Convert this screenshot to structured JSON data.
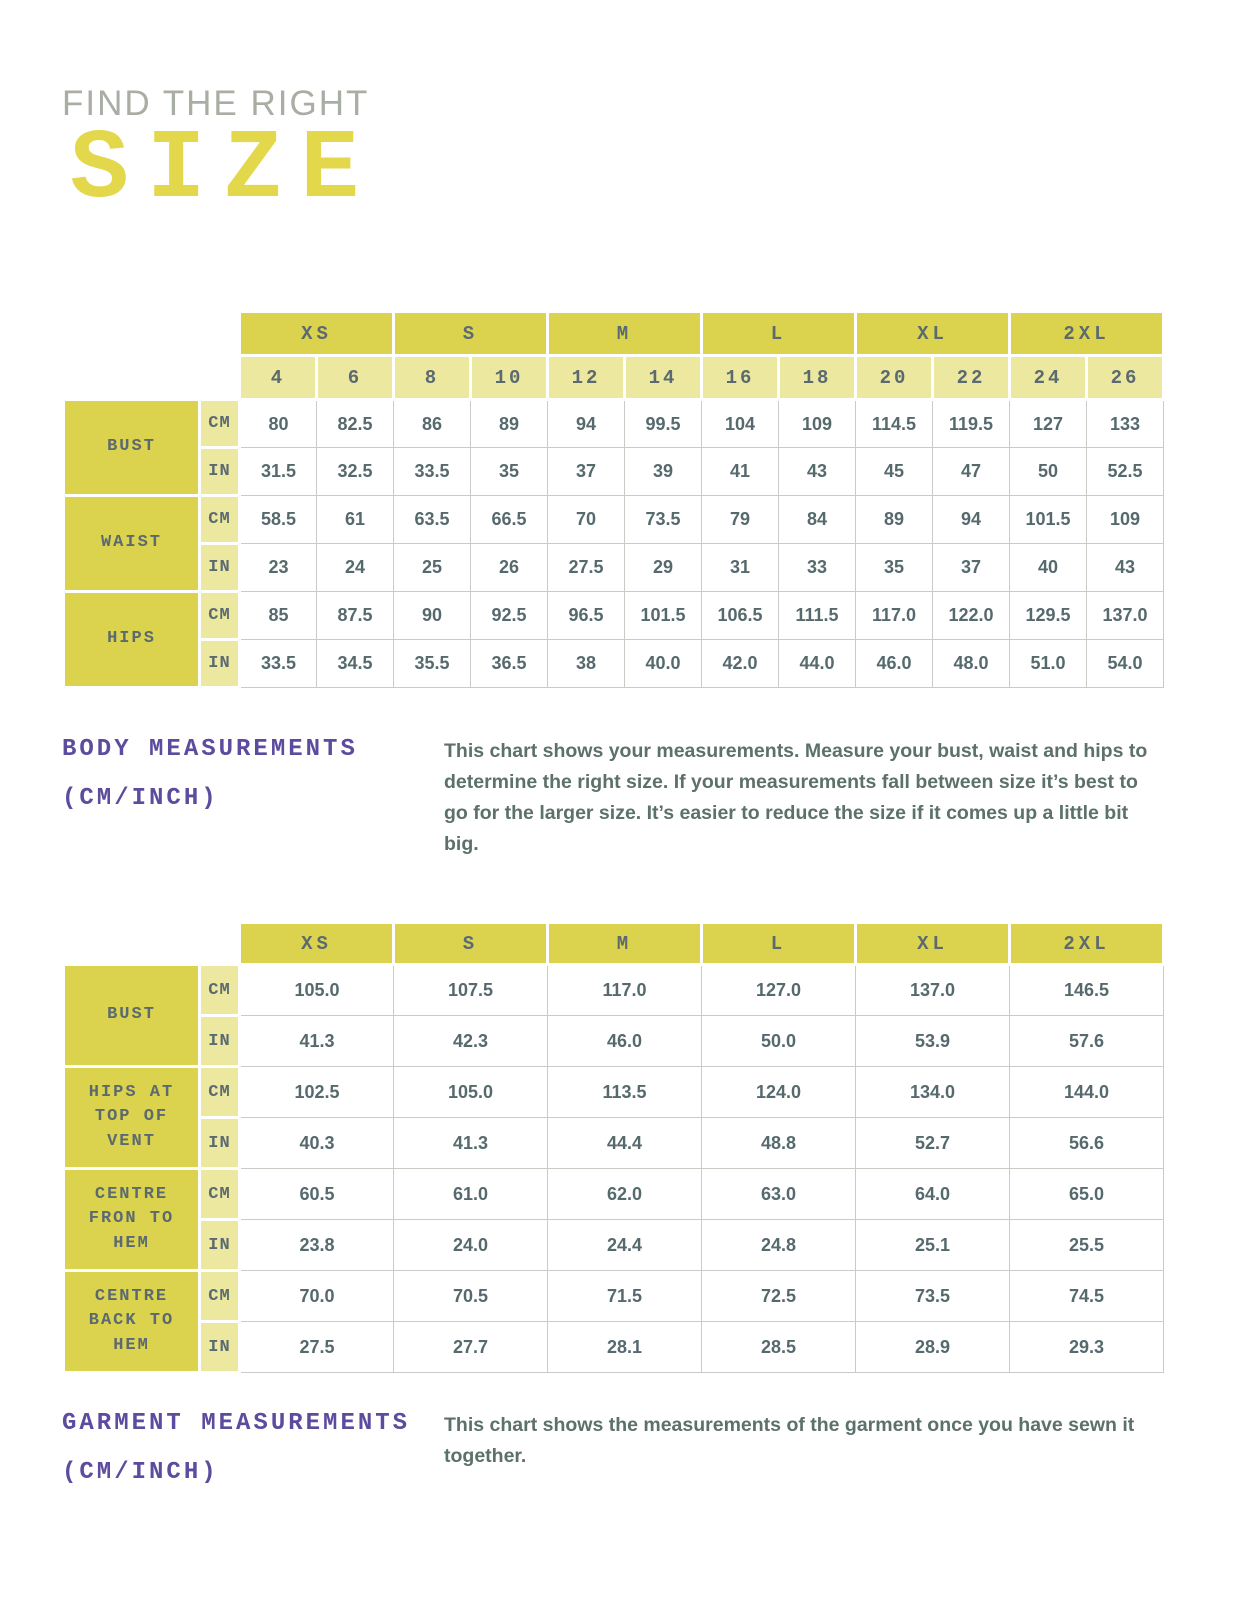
{
  "title": {
    "eyebrow": "FIND THE RIGHT",
    "word": "SIZE"
  },
  "body_section": {
    "heading_line1": "BODY MEASUREMENTS",
    "heading_line2": "(CM/INCH)",
    "description": "This chart shows your measurements. Measure your bust, waist and hips to determine the right size. If your measurements fall between size it’s best to go for the larger size. It’s easier to reduce the size if it comes up a little bit big."
  },
  "garment_section": {
    "heading_line1": "GARMENT MEASUREMENTS",
    "heading_line2": "(CM/INCH)",
    "description": "This chart shows the measurements of the garment once you have sewn it together."
  },
  "body_table": {
    "size_groups": [
      "XS",
      "S",
      "M",
      "L",
      "XL",
      "2XL"
    ],
    "numeric_sizes": [
      "4",
      "6",
      "8",
      "10",
      "12",
      "14",
      "16",
      "18",
      "20",
      "22",
      "24",
      "26"
    ],
    "unit_labels": [
      "CM",
      "IN"
    ],
    "rows": [
      {
        "label": "BUST",
        "cm": [
          "80",
          "82.5",
          "86",
          "89",
          "94",
          "99.5",
          "104",
          "109",
          "114.5",
          "119.5",
          "127",
          "133"
        ],
        "in": [
          "31.5",
          "32.5",
          "33.5",
          "35",
          "37",
          "39",
          "41",
          "43",
          "45",
          "47",
          "50",
          "52.5"
        ]
      },
      {
        "label": "WAIST",
        "cm": [
          "58.5",
          "61",
          "63.5",
          "66.5",
          "70",
          "73.5",
          "79",
          "84",
          "89",
          "94",
          "101.5",
          "109"
        ],
        "in": [
          "23",
          "24",
          "25",
          "26",
          "27.5",
          "29",
          "31",
          "33",
          "35",
          "37",
          "40",
          "43"
        ]
      },
      {
        "label": "HIPS",
        "cm": [
          "85",
          "87.5",
          "90",
          "92.5",
          "96.5",
          "101.5",
          "106.5",
          "111.5",
          "117.0",
          "122.0",
          "129.5",
          "137.0"
        ],
        "in": [
          "33.5",
          "34.5",
          "35.5",
          "36.5",
          "38",
          "40.0",
          "42.0",
          "44.0",
          "46.0",
          "48.0",
          "51.0",
          "54.0"
        ]
      }
    ]
  },
  "garment_table": {
    "size_groups": [
      "XS",
      "S",
      "M",
      "L",
      "XL",
      "2XL"
    ],
    "unit_labels": [
      "CM",
      "IN"
    ],
    "rows": [
      {
        "label": "BUST",
        "cm": [
          "105.0",
          "107.5",
          "117.0",
          "127.0",
          "137.0",
          "146.5"
        ],
        "in": [
          "41.3",
          "42.3",
          "46.0",
          "50.0",
          "53.9",
          "57.6"
        ]
      },
      {
        "label": "HIPS AT TOP OF VENT",
        "cm": [
          "102.5",
          "105.0",
          "113.5",
          "124.0",
          "134.0",
          "144.0"
        ],
        "in": [
          "40.3",
          "41.3",
          "44.4",
          "48.8",
          "52.7",
          "56.6"
        ]
      },
      {
        "label": "CENTRE FRON TO HEM",
        "cm": [
          "60.5",
          "61.0",
          "62.0",
          "63.0",
          "64.0",
          "65.0"
        ],
        "in": [
          "23.8",
          "24.0",
          "24.4",
          "24.8",
          "25.1",
          "25.5"
        ]
      },
      {
        "label": "CENTRE BACK TO HEM",
        "cm": [
          "70.0",
          "70.5",
          "71.5",
          "72.5",
          "73.5",
          "74.5"
        ],
        "in": [
          "27.5",
          "27.7",
          "28.1",
          "28.5",
          "28.9",
          "29.3"
        ]
      }
    ]
  },
  "colors": {
    "accent_yellow_dark": "#DBD24E",
    "accent_yellow_light": "#ECE8A0",
    "title_yellow": "#E3D84B",
    "title_gray": "#A9AEA4",
    "heading_purple": "#5D4B9E",
    "table_text_slate": "#5B6A70",
    "body_text": "#5C706C",
    "grid_gray": "#C9CBC5"
  }
}
